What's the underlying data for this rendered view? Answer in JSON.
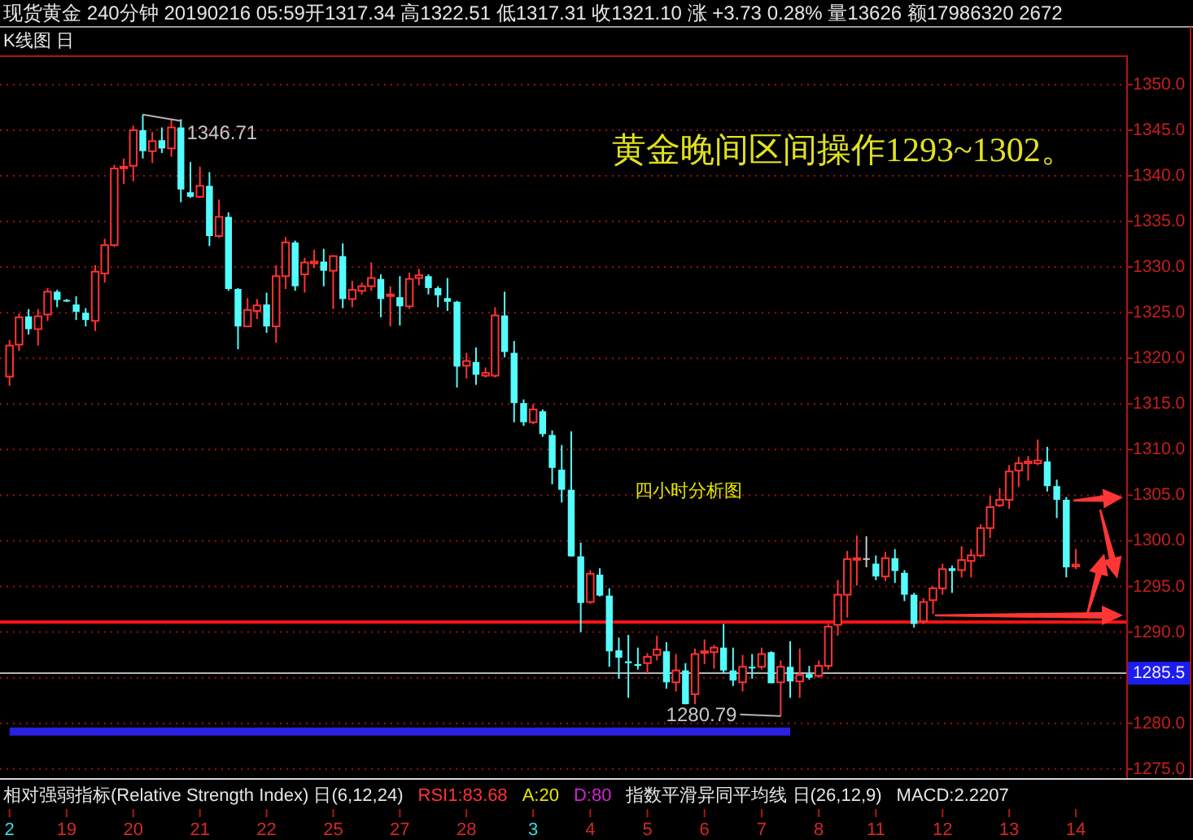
{
  "chart_data": {
    "type": "candlestick",
    "title": "现货黄金 240分钟  20190216 05:59开1317.34 高1322.51 低1317.31 收1321.10 涨 +3.73 0.28% 量13626 额17986320 2672",
    "subtitle": "K线图 日",
    "categories": [
      "2",
      null,
      null,
      null,
      null,
      null,
      "19",
      null,
      null,
      null,
      null,
      null,
      null,
      "20",
      null,
      null,
      null,
      null,
      null,
      null,
      "21",
      null,
      null,
      null,
      null,
      null,
      null,
      "22",
      null,
      null,
      null,
      null,
      null,
      null,
      "25",
      null,
      null,
      null,
      null,
      null,
      null,
      "27",
      null,
      null,
      null,
      null,
      null,
      null,
      "28",
      null,
      null,
      null,
      null,
      null,
      null,
      "3",
      null,
      null,
      null,
      null,
      null,
      "4",
      null,
      null,
      null,
      null,
      null,
      "5",
      null,
      null,
      null,
      null,
      null,
      "6",
      null,
      null,
      null,
      null,
      null,
      "7",
      null,
      null,
      null,
      null,
      null,
      "8",
      null,
      null,
      null,
      null,
      null,
      "11",
      null,
      null,
      null,
      null,
      null,
      null,
      "12",
      null,
      null,
      null,
      null,
      null,
      null,
      "13",
      null,
      null,
      null,
      null,
      null,
      null,
      "14"
    ],
    "ylim": [
      1274.0,
      1353.2
    ],
    "yticks": [
      {
        "value": 1275,
        "label": "1275.0"
      },
      {
        "value": 1280,
        "label": "1280.0"
      },
      {
        "value": 1285,
        "label": null
      },
      {
        "value": 1290,
        "label": "1290.0"
      },
      {
        "value": 1295,
        "label": "1295.0"
      },
      {
        "value": 1300,
        "label": "1300.0"
      },
      {
        "value": 1305,
        "label": "1305.0"
      },
      {
        "value": 1310,
        "label": "1310.0"
      },
      {
        "value": 1315,
        "label": "1315.0"
      },
      {
        "value": 1320,
        "label": "1320.0"
      },
      {
        "value": 1325,
        "label": "1325.0"
      },
      {
        "value": 1330,
        "label": "1330.0"
      },
      {
        "value": 1335,
        "label": "1335.0"
      },
      {
        "value": 1340,
        "label": "1340.0"
      },
      {
        "value": 1345,
        "label": "1345.0"
      },
      {
        "value": 1350,
        "label": "1350.0"
      }
    ],
    "grid": "y",
    "ohlc": [
      [
        1318.0,
        1322.0,
        1317.0,
        1321.4
      ],
      [
        1321.5,
        1324.9,
        1320.8,
        1324.5
      ],
      [
        1324.6,
        1325.4,
        1322.6,
        1323.2
      ],
      [
        1323.2,
        1325.4,
        1321.4,
        1324.6
      ],
      [
        1324.8,
        1327.7,
        1324.1,
        1327.3
      ],
      [
        1327.3,
        1327.5,
        1325.6,
        1326.4
      ],
      [
        1326.4,
        1326.5,
        1326.2,
        1326.3
      ],
      [
        1325.9,
        1326.8,
        1324.2,
        1325.1
      ],
      [
        1325.0,
        1325.5,
        1323.5,
        1324.2
      ],
      [
        1324.1,
        1330.2,
        1323.0,
        1329.5
      ],
      [
        1329.3,
        1333.1,
        1328.3,
        1332.4
      ],
      [
        1332.4,
        1341.2,
        1332.2,
        1340.8
      ],
      [
        1340.9,
        1341.9,
        1339.1,
        1341.0
      ],
      [
        1341.1,
        1345.5,
        1339.4,
        1345.0
      ],
      [
        1345.0,
        1346.71,
        1341.9,
        1342.7
      ],
      [
        1342.7,
        1344.8,
        1341.4,
        1343.8
      ],
      [
        1343.9,
        1345.3,
        1342.5,
        1343.0
      ],
      [
        1343.0,
        1346.2,
        1342.1,
        1345.3
      ],
      [
        1345.3,
        1346.2,
        1337.1,
        1338.5
      ],
      [
        1338.2,
        1341.5,
        1337.6,
        1337.7
      ],
      [
        1337.7,
        1341.0,
        1337.6,
        1338.9
      ],
      [
        1338.9,
        1340.4,
        1332.3,
        1333.4
      ],
      [
        1333.4,
        1337.4,
        1333.2,
        1335.5
      ],
      [
        1335.5,
        1336.0,
        1327.4,
        1327.6
      ],
      [
        1327.6,
        1327.7,
        1321.0,
        1323.5
      ],
      [
        1323.5,
        1326.6,
        1323.4,
        1325.3
      ],
      [
        1325.2,
        1326.5,
        1324.3,
        1325.8
      ],
      [
        1325.9,
        1327.2,
        1322.8,
        1323.5
      ],
      [
        1323.5,
        1330.2,
        1321.7,
        1329.0
      ],
      [
        1329.0,
        1333.3,
        1327.6,
        1332.7
      ],
      [
        1332.7,
        1332.9,
        1327.4,
        1327.9
      ],
      [
        1329.2,
        1331.0,
        1327.2,
        1330.5
      ],
      [
        1330.4,
        1331.9,
        1329.9,
        1330.6
      ],
      [
        1330.6,
        1332.0,
        1327.9,
        1329.6
      ],
      [
        1329.6,
        1331.3,
        1325.4,
        1331.2
      ],
      [
        1331.2,
        1332.6,
        1325.5,
        1326.5
      ],
      [
        1326.5,
        1328.5,
        1325.6,
        1327.5
      ],
      [
        1327.4,
        1328.3,
        1327.0,
        1327.9
      ],
      [
        1327.9,
        1330.5,
        1327.4,
        1328.8
      ],
      [
        1328.7,
        1329.2,
        1324.5,
        1326.5
      ],
      [
        1326.9,
        1327.9,
        1323.5,
        1327.0
      ],
      [
        1326.7,
        1329.0,
        1323.6,
        1325.7
      ],
      [
        1325.7,
        1329.4,
        1325.4,
        1328.7
      ],
      [
        1328.8,
        1329.8,
        1328.0,
        1329.1
      ],
      [
        1329.0,
        1329.2,
        1327.0,
        1327.7
      ],
      [
        1327.7,
        1327.9,
        1325.6,
        1326.9
      ],
      [
        1326.6,
        1328.8,
        1325.2,
        1326.2
      ],
      [
        1326.2,
        1326.3,
        1316.8,
        1319.1
      ],
      [
        1319.2,
        1320.6,
        1317.8,
        1319.7
      ],
      [
        1319.6,
        1321.2,
        1317.1,
        1318.2
      ],
      [
        1318.1,
        1319.0,
        1317.9,
        1318.4
      ],
      [
        1318.1,
        1325.6,
        1317.9,
        1324.7
      ],
      [
        1324.7,
        1327.3,
        1320.1,
        1320.7
      ],
      [
        1320.6,
        1321.9,
        1313.0,
        1315.1
      ],
      [
        1315.1,
        1315.5,
        1312.6,
        1313.0
      ],
      [
        1313.0,
        1315.0,
        1312.8,
        1314.4
      ],
      [
        1314.2,
        1314.4,
        1311.4,
        1311.7
      ],
      [
        1311.6,
        1312.1,
        1306.2,
        1308.0
      ],
      [
        1307.8,
        1310.5,
        1304.2,
        1305.6
      ],
      [
        1305.6,
        1312.0,
        1298.3,
        1298.3
      ],
      [
        1298.3,
        1299.8,
        1290.0,
        1293.2
      ],
      [
        1293.3,
        1296.8,
        1293.1,
        1296.4
      ],
      [
        1296.3,
        1297.0,
        1293.9,
        1294.0
      ],
      [
        1294.0,
        1294.8,
        1286.2,
        1287.9
      ],
      [
        1288.0,
        1289.4,
        1284.9,
        1287.2
      ],
      [
        1286.8,
        1289.7,
        1282.8,
        1286.6
      ],
      [
        1286.5,
        1288.3,
        1285.9,
        1286.3
      ],
      [
        1286.6,
        1287.7,
        1285.5,
        1287.3
      ],
      [
        1287.5,
        1289.6,
        1286.9,
        1288.1
      ],
      [
        1287.9,
        1288.9,
        1283.8,
        1284.5
      ],
      [
        1284.5,
        1287.6,
        1283.5,
        1285.8
      ],
      [
        1285.8,
        1286.6,
        1282.1,
        1282.1
      ],
      [
        1283.2,
        1288.2,
        1282.1,
        1287.6
      ],
      [
        1287.8,
        1289.2,
        1286.5,
        1287.9
      ],
      [
        1287.8,
        1288.6,
        1286.0,
        1288.3
      ],
      [
        1288.3,
        1290.9,
        1285.5,
        1285.8
      ],
      [
        1285.8,
        1288.3,
        1284.1,
        1284.7
      ],
      [
        1284.5,
        1287.5,
        1283.5,
        1286.2
      ],
      [
        1286.2,
        1287.6,
        1284.9,
        1286.1
      ],
      [
        1286.2,
        1288.3,
        1285.9,
        1287.6
      ],
      [
        1287.8,
        1287.9,
        1284.4,
        1284.4
      ],
      [
        1284.5,
        1286.9,
        1280.79,
        1286.2
      ],
      [
        1286.2,
        1289.0,
        1282.8,
        1284.6
      ],
      [
        1284.6,
        1288.2,
        1282.8,
        1285.3
      ],
      [
        1285.4,
        1286.3,
        1284.8,
        1285.0
      ],
      [
        1285.2,
        1286.9,
        1285.0,
        1286.3
      ],
      [
        1286.3,
        1290.9,
        1285.9,
        1290.6
      ],
      [
        1290.8,
        1295.7,
        1289.6,
        1294.1
      ],
      [
        1294.1,
        1298.9,
        1291.6,
        1298.0
      ],
      [
        1298.0,
        1300.6,
        1295.1,
        1298.1
      ],
      [
        1298.1,
        1300.5,
        1297.1,
        1298.1
      ],
      [
        1297.5,
        1298.4,
        1295.7,
        1296.1
      ],
      [
        1296.1,
        1298.8,
        1295.6,
        1298.1
      ],
      [
        1298.1,
        1299.1,
        1295.4,
        1296.7
      ],
      [
        1296.5,
        1296.8,
        1293.4,
        1294.1
      ],
      [
        1294.1,
        1294.3,
        1290.5,
        1290.9
      ],
      [
        1291.2,
        1293.7,
        1290.9,
        1293.3
      ],
      [
        1293.5,
        1295.0,
        1292.0,
        1294.8
      ],
      [
        1294.8,
        1297.5,
        1294.1,
        1296.9
      ],
      [
        1297.0,
        1297.3,
        1294.3,
        1296.7
      ],
      [
        1296.8,
        1299.4,
        1296.0,
        1297.9
      ],
      [
        1297.8,
        1299.1,
        1296.0,
        1298.4
      ],
      [
        1298.4,
        1301.8,
        1298.2,
        1301.4
      ],
      [
        1301.4,
        1304.9,
        1300.3,
        1303.7
      ],
      [
        1303.9,
        1305.8,
        1303.7,
        1304.5
      ],
      [
        1304.5,
        1308.3,
        1303.5,
        1307.6
      ],
      [
        1307.7,
        1309.2,
        1305.9,
        1308.5
      ],
      [
        1308.5,
        1309.3,
        1306.6,
        1308.7
      ],
      [
        1308.5,
        1311.1,
        1308.3,
        1308.8
      ],
      [
        1308.7,
        1310.3,
        1305.4,
        1306.0
      ],
      [
        1306.0,
        1306.7,
        1302.5,
        1304.5
      ],
      [
        1304.5,
        1304.8,
        1296.0,
        1297.1
      ],
      [
        1297.2,
        1299.1,
        1296.9,
        1297.4
      ]
    ],
    "colors": [
      "#ff3232",
      "#ff3232",
      "#54fcfc",
      "#ff3232",
      "#ff3232",
      "#54fcfc",
      "#54fcfc",
      "#54fcfc",
      "#54fcfc",
      "#ff3232",
      "#ff3232",
      "#ff3232",
      "#ff3232",
      "#ff3232",
      "#54fcfc",
      "#ff3232",
      "#54fcfc",
      "#ff3232",
      "#54fcfc",
      "#54fcfc",
      "#ff3232",
      "#54fcfc",
      "#ff3232",
      "#54fcfc",
      "#54fcfc",
      "#ff3232",
      "#ff3232",
      "#54fcfc",
      "#ff3232",
      "#ff3232",
      "#54fcfc",
      "#ff3232",
      "#ff3232",
      "#54fcfc",
      "#ff3232",
      "#54fcfc",
      "#ff3232",
      "#ff3232",
      "#ff3232",
      "#54fcfc",
      "#ff3232",
      "#54fcfc",
      "#ff3232",
      "#ff3232",
      "#54fcfc",
      "#54fcfc",
      "#54fcfc",
      "#54fcfc",
      "#ff3232",
      "#54fcfc",
      "#ff3232",
      "#ff3232",
      "#54fcfc",
      "#54fcfc",
      "#54fcfc",
      "#ff3232",
      "#54fcfc",
      "#54fcfc",
      "#54fcfc",
      "#54fcfc",
      "#54fcfc",
      "#ff3232",
      "#54fcfc",
      "#54fcfc",
      "#54fcfc",
      "#54fcfc",
      "#54fcfc",
      "#ff3232",
      "#ff3232",
      "#54fcfc",
      "#ff3232",
      "#54fcfc",
      "#ff3232",
      "#ff3232",
      "#ff3232",
      "#54fcfc",
      "#54fcfc",
      "#ff3232",
      "#54fcfc",
      "#ff3232",
      "#54fcfc",
      "#ff3232",
      "#54fcfc",
      "#ff3232",
      "#54fcfc",
      "#ff3232",
      "#ff3232",
      "#ff3232",
      "#ff3232",
      "#ff3232",
      "#c8c8c8",
      "#54fcfc",
      "#ff3232",
      "#54fcfc",
      "#54fcfc",
      "#54fcfc",
      "#ff3232",
      "#ff3232",
      "#ff3232",
      "#54fcfc",
      "#ff3232",
      "#ff3232",
      "#ff3232",
      "#ff3232",
      "#ff3232",
      "#ff3232",
      "#ff3232",
      "#ff3232",
      "#ff3232",
      "#54fcfc",
      "#54fcfc",
      "#54fcfc",
      "#ff3232"
    ],
    "series": [
      {
        "type": "line",
        "color": "#2b1fe0",
        "values": [
          1279.1,
          1279.1,
          1279.1,
          1279.1,
          1279.1,
          1279.1,
          1279.1,
          1279.1,
          1279.1,
          1279.1,
          1279.1,
          1279.1,
          1279.1,
          1279.1,
          1279.1,
          1279.1,
          1279.1,
          1279.1,
          1279.1,
          1279.1,
          1279.1,
          1279.1,
          1279.1,
          1279.1,
          1279.1,
          1279.1,
          1279.1,
          1279.1,
          1279.1,
          1279.1,
          1279.1,
          1279.1,
          1279.1,
          1279.1,
          1279.1,
          1279.1,
          1279.1,
          1279.1,
          1279.1,
          1279.1,
          1279.1,
          1279.1,
          1279.1,
          1279.1,
          1279.1,
          1279.1,
          1279.1,
          1279.1,
          1279.1,
          1279.1,
          1279.1,
          1279.1,
          1279.1,
          1279.1,
          1279.1,
          1279.1,
          1279.1,
          1279.1,
          1279.1,
          1279.1,
          1279.1,
          1279.1,
          1279.1,
          1279.1,
          1279.1,
          1279.1,
          1279.1,
          1279.1,
          1279.1,
          1279.1,
          1279.1,
          1279.1,
          1279.1,
          1279.1,
          1279.1,
          1279.1,
          1279.1,
          1279.1,
          1279.1,
          1279.1,
          1279.1,
          1279.1,
          1279.1,
          null,
          null,
          null,
          null,
          null,
          null,
          null,
          null,
          null,
          null,
          null,
          null,
          null,
          null,
          null,
          null,
          null,
          null,
          null,
          null,
          null,
          null,
          null,
          null,
          null,
          null,
          null,
          null,
          null,
          null
        ]
      }
    ],
    "ref_lines": [
      {
        "axis": "y",
        "value": 1291.1,
        "color": "#ff1414"
      },
      {
        "axis": "y",
        "value": 1285.5,
        "label": "1285.5",
        "color": "#b4b4b4"
      }
    ],
    "annotations": [
      "黄金晚间区间操作1293~1302。",
      "四小时分析图",
      "1346.71",
      "1280.79",
      "相对强弱指标(Relative Strength Index) 日(6,12,24)",
      "RSI1:83.68",
      "A:20",
      "D:80",
      "指数平滑异同平均线 日(26,12,9)",
      "MACD:2.2207"
    ]
  }
}
